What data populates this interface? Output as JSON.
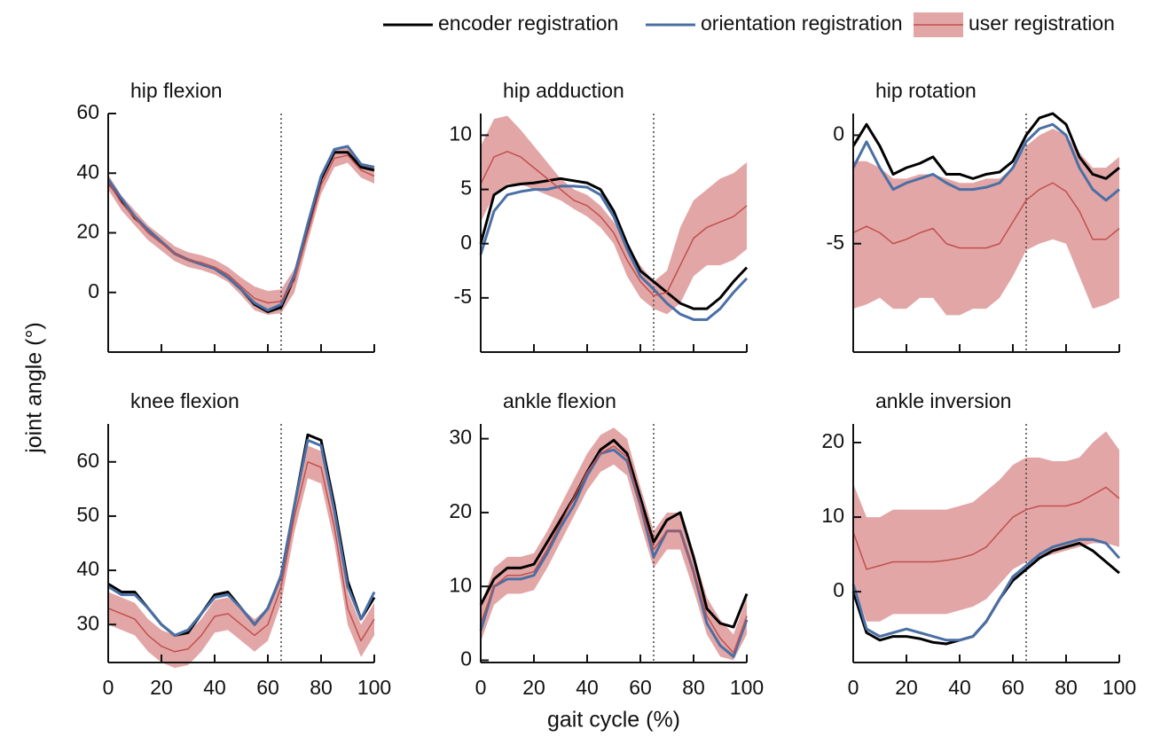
{
  "figure": {
    "ylabel": "joint angle (°)",
    "xlabel": "gait cycle (%)"
  },
  "chart_data": [
    {
      "type": "line",
      "title": "hip flexion",
      "xticklabels": false,
      "vline": 65,
      "x": [
        0,
        5,
        10,
        15,
        20,
        25,
        30,
        35,
        40,
        45,
        50,
        55,
        60,
        65,
        70,
        75,
        80,
        85,
        90,
        95,
        100
      ],
      "xlim": [
        0,
        100
      ],
      "xticks": [
        0,
        20,
        40,
        60,
        80,
        100
      ],
      "ylim": [
        -20,
        60
      ],
      "yticks": [
        0,
        20,
        40,
        60
      ],
      "series": [
        {
          "name": "encoder registration",
          "color": "#000000",
          "values": [
            37,
            31,
            25,
            21,
            17,
            13,
            11,
            9.5,
            8,
            5,
            1,
            -4,
            -6.5,
            -5,
            5,
            22,
            38,
            47,
            47,
            42,
            41
          ]
        },
        {
          "name": "orientation registration",
          "color": "#4a6fa5",
          "values": [
            38,
            31.5,
            25.5,
            21,
            17,
            13,
            11,
            9.5,
            8,
            5,
            1,
            -3.5,
            -6,
            -4,
            6,
            23,
            39,
            48,
            49,
            43,
            42
          ]
        },
        {
          "name": "user registration",
          "color": "#c0504d",
          "band_color": "#e3a6a6",
          "values": [
            37,
            30,
            25,
            20,
            16.5,
            13,
            11,
            10,
            8.5,
            6,
            2,
            -2,
            -3.5,
            -3,
            4,
            20,
            36,
            45,
            46,
            41,
            39
          ],
          "upper": [
            39.5,
            32.5,
            27.5,
            22.5,
            19,
            15.5,
            13.5,
            12.5,
            11,
            8.5,
            5,
            2,
            0.5,
            1,
            8,
            23,
            39,
            48,
            48.5,
            43.5,
            41.5
          ],
          "lower": [
            34.5,
            27.5,
            22.5,
            17.5,
            14,
            10.5,
            8.5,
            7.5,
            6,
            3.5,
            -1,
            -6,
            -7.5,
            -7,
            0,
            17,
            33,
            42,
            43.5,
            38.5,
            36.5
          ]
        }
      ]
    },
    {
      "type": "line",
      "title": "hip adduction",
      "xticklabels": false,
      "vline": 65,
      "x": [
        0,
        5,
        10,
        15,
        20,
        25,
        30,
        35,
        40,
        45,
        50,
        55,
        60,
        65,
        70,
        75,
        80,
        85,
        90,
        95,
        100
      ],
      "xlim": [
        0,
        100
      ],
      "xticks": [
        0,
        20,
        40,
        60,
        80,
        100
      ],
      "ylim": [
        -10,
        12
      ],
      "yticks": [
        -5,
        0,
        5,
        10
      ],
      "series": [
        {
          "name": "encoder registration",
          "color": "#000000",
          "values": [
            0,
            4.5,
            5.3,
            5.5,
            5.6,
            5.8,
            6,
            5.8,
            5.6,
            5,
            3,
            0,
            -2.5,
            -3.5,
            -4.5,
            -5.5,
            -6,
            -6,
            -5,
            -3.5,
            -2.2
          ]
        },
        {
          "name": "orientation registration",
          "color": "#4a6fa5",
          "values": [
            -1,
            3,
            4.5,
            4.8,
            5,
            5,
            5.3,
            5.3,
            5.2,
            4.5,
            2.5,
            -0.5,
            -3,
            -4.2,
            -5.5,
            -6.5,
            -7,
            -7,
            -6,
            -4.5,
            -3.2
          ]
        },
        {
          "name": "user registration",
          "color": "#c0504d",
          "band_color": "#e3a6a6",
          "values": [
            5.5,
            8,
            8.5,
            8,
            7,
            6,
            5,
            4,
            3.5,
            2.5,
            1,
            -1.5,
            -3.5,
            -4.8,
            -4.5,
            -2,
            0.5,
            1.5,
            2,
            2.5,
            3.5
          ],
          "upper": [
            9,
            11.5,
            11.8,
            10.5,
            9,
            7.5,
            6,
            5,
            4.5,
            3.5,
            2,
            0,
            -2,
            -3.5,
            -2.5,
            1.5,
            4,
            5,
            6,
            6.5,
            7.5
          ],
          "lower": [
            2,
            4.5,
            5.5,
            5.5,
            5,
            4.5,
            4,
            3.2,
            2.5,
            1.5,
            0,
            -3,
            -5,
            -6,
            -6.5,
            -5.5,
            -3,
            -2,
            -2,
            -1.5,
            -0.5
          ]
        }
      ]
    },
    {
      "type": "line",
      "title": "hip rotation",
      "xticklabels": false,
      "vline": 65,
      "x": [
        0,
        5,
        10,
        15,
        20,
        25,
        30,
        35,
        40,
        45,
        50,
        55,
        60,
        65,
        70,
        75,
        80,
        85,
        90,
        95,
        100
      ],
      "xlim": [
        0,
        100
      ],
      "xticks": [
        0,
        20,
        40,
        60,
        80,
        100
      ],
      "ylim": [
        -10,
        1
      ],
      "yticks": [
        -5,
        0
      ],
      "series": [
        {
          "name": "encoder registration",
          "color": "#000000",
          "values": [
            -0.5,
            0.5,
            -0.5,
            -1.8,
            -1.5,
            -1.3,
            -1,
            -1.8,
            -1.8,
            -2,
            -1.8,
            -1.7,
            -1.2,
            0,
            0.8,
            1,
            0.5,
            -1,
            -1.8,
            -2,
            -1.5
          ]
        },
        {
          "name": "orientation registration",
          "color": "#4a6fa5",
          "values": [
            -1.5,
            -0.3,
            -1.5,
            -2.5,
            -2.2,
            -2,
            -1.8,
            -2.2,
            -2.5,
            -2.5,
            -2.4,
            -2.2,
            -1.5,
            -0.3,
            0.3,
            0.5,
            0,
            -1.5,
            -2.5,
            -3,
            -2.5
          ]
        },
        {
          "name": "user registration",
          "color": "#c0504d",
          "band_color": "#e3a6a6",
          "values": [
            -4.5,
            -4.2,
            -4.5,
            -5,
            -4.8,
            -4.5,
            -4.3,
            -5,
            -5.2,
            -5.2,
            -5.2,
            -5,
            -4,
            -3,
            -2.5,
            -2.2,
            -2.6,
            -3.5,
            -4.8,
            -4.8,
            -4.3
          ],
          "upper": [
            -1.2,
            -1.2,
            -1.5,
            -2,
            -2,
            -1.8,
            -1.8,
            -2,
            -2.2,
            -2.2,
            -2,
            -2,
            -1.5,
            -0.5,
            0,
            0.3,
            0,
            -0.8,
            -1.5,
            -1.5,
            -1
          ],
          "lower": [
            -8,
            -7.8,
            -7.5,
            -8,
            -8,
            -7.5,
            -7.5,
            -8.3,
            -8.3,
            -8,
            -8,
            -7.5,
            -6.5,
            -5.3,
            -5,
            -4.8,
            -5,
            -6.5,
            -8,
            -7.8,
            -7.5
          ]
        }
      ]
    },
    {
      "type": "line",
      "title": "knee flexion",
      "xticklabels": true,
      "vline": 65,
      "x": [
        0,
        5,
        10,
        15,
        20,
        25,
        30,
        35,
        40,
        45,
        50,
        55,
        60,
        65,
        70,
        75,
        80,
        85,
        90,
        95,
        100
      ],
      "xlim": [
        0,
        100
      ],
      "xticks": [
        0,
        20,
        40,
        60,
        80,
        100
      ],
      "ylim": [
        23,
        67
      ],
      "yticks": [
        30,
        40,
        50,
        60
      ],
      "series": [
        {
          "name": "encoder registration",
          "color": "#000000",
          "values": [
            37.5,
            36,
            36,
            33,
            30,
            28,
            28.5,
            32,
            35.5,
            36,
            33,
            30,
            33,
            39,
            52,
            65,
            64,
            52,
            38,
            31,
            35
          ]
        },
        {
          "name": "orientation registration",
          "color": "#4a6fa5",
          "values": [
            37,
            35.5,
            35.5,
            33,
            30,
            28,
            29,
            32,
            35,
            35.5,
            33,
            30,
            33,
            39,
            52,
            64,
            63,
            51,
            37,
            31,
            36
          ]
        },
        {
          "name": "user registration",
          "color": "#c0504d",
          "band_color": "#e3a6a6",
          "values": [
            33,
            32,
            31,
            28,
            26,
            25,
            25.5,
            28,
            31.5,
            32,
            30,
            28,
            30,
            37,
            50,
            60,
            59,
            48,
            33,
            27,
            31
          ],
          "upper": [
            36,
            35,
            34,
            31,
            29,
            28,
            28.5,
            31,
            34.5,
            35,
            33,
            31,
            33,
            40,
            53,
            63,
            62,
            51,
            36,
            30,
            34
          ],
          "lower": [
            30,
            29,
            28,
            25,
            23,
            22,
            22.5,
            25,
            28.5,
            29,
            27,
            25,
            27,
            34,
            47,
            57,
            56,
            45,
            30,
            24,
            28
          ]
        }
      ]
    },
    {
      "type": "line",
      "title": "ankle flexion",
      "xticklabels": true,
      "vline": 65,
      "x": [
        0,
        5,
        10,
        15,
        20,
        25,
        30,
        35,
        40,
        45,
        50,
        55,
        60,
        65,
        70,
        75,
        80,
        85,
        90,
        95,
        100
      ],
      "xlim": [
        0,
        100
      ],
      "xticks": [
        0,
        20,
        40,
        60,
        80,
        100
      ],
      "ylim": [
        -0.3,
        32
      ],
      "yticks": [
        0,
        10,
        20,
        30
      ],
      "series": [
        {
          "name": "encoder registration",
          "color": "#000000",
          "values": [
            7.5,
            11,
            12.5,
            12.5,
            13,
            16,
            19,
            22,
            25.5,
            28.5,
            29.8,
            28,
            22,
            16,
            19,
            20,
            14,
            7,
            5,
            4.5,
            9
          ]
        },
        {
          "name": "orientation registration",
          "color": "#4a6fa5",
          "values": [
            4,
            10,
            11,
            11,
            11.5,
            14.5,
            18,
            21,
            25,
            28,
            28.5,
            27,
            21,
            14,
            17.5,
            17.5,
            12,
            5,
            2,
            0.5,
            5.5
          ]
        },
        {
          "name": "user registration",
          "color": "#c0504d",
          "band_color": "#e3a6a6",
          "values": [
            5,
            10,
            11.5,
            11.5,
            12,
            15,
            18.5,
            22,
            25.5,
            28,
            29,
            27.5,
            21,
            15,
            17.5,
            17.5,
            12,
            6,
            3,
            1,
            6
          ],
          "upper": [
            7.5,
            12.5,
            14,
            14,
            14.5,
            17.5,
            21,
            24.5,
            28,
            30.5,
            31.5,
            30,
            23.5,
            17.5,
            20,
            20,
            14.5,
            8.5,
            5.5,
            3.5,
            8.5
          ],
          "lower": [
            2.5,
            7.5,
            9,
            9,
            9.5,
            12.5,
            16,
            19.5,
            23,
            25.5,
            26.5,
            25,
            18.5,
            12.5,
            15,
            15,
            9.5,
            3.5,
            0.5,
            0,
            3.5
          ]
        }
      ]
    },
    {
      "type": "line",
      "title": "ankle inversion",
      "xticklabels": true,
      "vline": 65,
      "x": [
        0,
        5,
        10,
        15,
        20,
        25,
        30,
        35,
        40,
        45,
        50,
        55,
        60,
        65,
        70,
        75,
        80,
        85,
        90,
        95,
        100
      ],
      "xlim": [
        0,
        100
      ],
      "xticks": [
        0,
        20,
        40,
        60,
        80,
        100
      ],
      "ylim": [
        -9.5,
        22.5
      ],
      "yticks": [
        0,
        10,
        20
      ],
      "series": [
        {
          "name": "encoder registration",
          "color": "#000000",
          "values": [
            0,
            -5.5,
            -6.5,
            -6,
            -6,
            -6.3,
            -6.8,
            -7,
            -6.5,
            -6,
            -4,
            -1,
            1.5,
            3,
            4.5,
            5.5,
            6,
            6.5,
            5.5,
            4,
            2.5
          ]
        },
        {
          "name": "orientation registration",
          "color": "#4a6fa5",
          "values": [
            1,
            -5,
            -6,
            -5.5,
            -5,
            -5.5,
            -6,
            -6.5,
            -6.5,
            -6,
            -4,
            -1,
            2,
            3.5,
            5,
            6,
            6.5,
            7,
            7,
            6.5,
            4.5
          ]
        },
        {
          "name": "user registration",
          "color": "#c0504d",
          "band_color": "#e3a6a6",
          "values": [
            8,
            3,
            3.5,
            4,
            4,
            4,
            4,
            4.2,
            4.5,
            5,
            6,
            8,
            10,
            11,
            11.5,
            11.5,
            11.5,
            12,
            13,
            14,
            12.5
          ],
          "upper": [
            14.5,
            10,
            10,
            11,
            11,
            11,
            11,
            11,
            11.5,
            12,
            13.5,
            15,
            17,
            18,
            18,
            17.5,
            17.5,
            18,
            20,
            21.5,
            19
          ],
          "lower": [
            1,
            -4,
            -4,
            -3,
            -3,
            -3,
            -3,
            -3,
            -2.5,
            -2,
            -1,
            1,
            3,
            4,
            4.5,
            5,
            5.5,
            6,
            6.5,
            6.5,
            6
          ]
        }
      ]
    }
  ]
}
